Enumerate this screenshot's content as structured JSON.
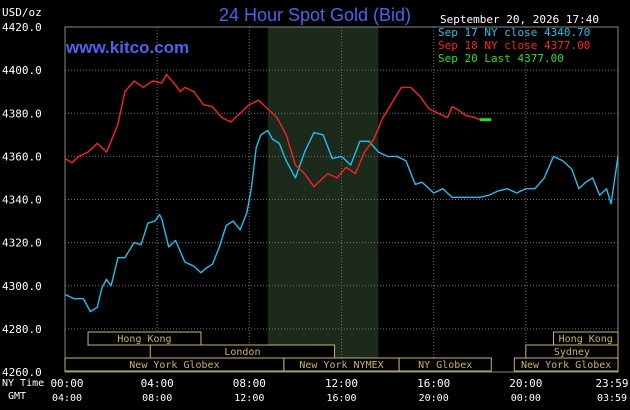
{
  "header": {
    "title": "24 Hour Spot Gold (Bid)",
    "site": "www.kitco.com",
    "unit": "USD/oz",
    "datetime": "September 20, 2026 17:40"
  },
  "legend": [
    {
      "label": "Sep 17 NY close 4340.70",
      "color": "#20c0f0"
    },
    {
      "label": "Sep 18 NY close 4377.00",
      "color": "#ff2020"
    },
    {
      "label": "Sep 20 Last 4377.00",
      "color": "#20e020"
    }
  ],
  "axis": {
    "ny_label": "NY Time",
    "gmt_label": "GMT",
    "ny_ticks": [
      "00:00",
      "04:00",
      "08:00",
      "12:00",
      "16:00",
      "20:00",
      "23:59"
    ],
    "gmt_ticks": [
      "04:00",
      "08:00",
      "12:00",
      "16:00",
      "20:00",
      "00:00",
      "03:59"
    ]
  },
  "sessions": [
    {
      "label": "Hong Kong",
      "row": 0,
      "start": 1.0,
      "end": 5.9
    },
    {
      "label": "Hong Kong",
      "row": 0,
      "start": 21.2,
      "end": 24.0
    },
    {
      "label": "London",
      "row": 1,
      "start": 3.7,
      "end": 11.7
    },
    {
      "label": "Sydney",
      "row": 1,
      "start": 20.0,
      "end": 24.0
    },
    {
      "label": "New York Globex",
      "row": 2,
      "start": 0.0,
      "end": 9.5
    },
    {
      "label": "New York NYMEX",
      "row": 2,
      "start": 9.5,
      "end": 14.5
    },
    {
      "label": "NY Globex",
      "row": 2,
      "start": 14.5,
      "end": 18.5
    },
    {
      "label": "New York Globex",
      "row": 2,
      "start": 19.5,
      "end": 24.0
    }
  ],
  "colors": {
    "background": "#000000",
    "grid": "#707070",
    "highlight": "#1c2a1c",
    "title": "#5060f0",
    "session_fill": "#000000",
    "session_border": "#c8b468"
  },
  "chart_data": {
    "type": "line",
    "title": "24 Hour Spot Gold (Bid)",
    "xlabel": "",
    "ylabel": "",
    "xlim": [
      0,
      24
    ],
    "ylim": [
      4260,
      4420
    ],
    "yticks": [
      4260,
      4280,
      4300,
      4320,
      4340,
      4360,
      4380,
      4400,
      4420
    ],
    "highlight_range": [
      8.8,
      13.6
    ],
    "series": [
      {
        "name": "Sep 17 NY close 4340.70",
        "color": "#20c0f0",
        "x": [
          0,
          0.4,
          0.8,
          1.1,
          1.4,
          1.6,
          1.8,
          2.0,
          2.3,
          2.6,
          3.0,
          3.3,
          3.6,
          3.9,
          4.1,
          4.2,
          4.5,
          4.8,
          5.2,
          5.6,
          5.9,
          6.1,
          6.4,
          6.7,
          7.0,
          7.3,
          7.6,
          7.9,
          8.1,
          8.3,
          8.5,
          8.8,
          9.0,
          9.3,
          9.6,
          10.0,
          10.4,
          10.8,
          11.2,
          11.6,
          12.0,
          12.4,
          12.8,
          13.2,
          13.6,
          14.0,
          14.4,
          14.8,
          15.2,
          15.5,
          16.0,
          16.4,
          16.8,
          17.2,
          17.6,
          18.0,
          18.4,
          18.8,
          19.2,
          19.6,
          20.0,
          20.4,
          20.8,
          21.2,
          21.6,
          22.0,
          22.3,
          22.6,
          22.9,
          23.2,
          23.5,
          23.7,
          24.0
        ],
        "y": [
          4296,
          4294,
          4294,
          4288,
          4290,
          4299,
          4303,
          4300,
          4313,
          4313,
          4320,
          4319,
          4329,
          4330,
          4333,
          4331,
          4318,
          4321,
          4311,
          4309,
          4306,
          4308,
          4310,
          4318,
          4328,
          4330,
          4326,
          4334,
          4346,
          4364,
          4370,
          4372,
          4368,
          4366,
          4358,
          4350,
          4362,
          4371,
          4370,
          4359,
          4360,
          4356,
          4367,
          4367,
          4362,
          4360,
          4360,
          4358,
          4347,
          4348,
          4343,
          4345,
          4341,
          4341,
          4341,
          4341,
          4342,
          4344,
          4345,
          4343,
          4345,
          4345,
          4350,
          4360,
          4358,
          4354,
          4345,
          4348,
          4350,
          4342,
          4345,
          4338,
          4360
        ]
      },
      {
        "name": "Sep 18 NY close 4377.00",
        "color": "#ff2020",
        "x": [
          0,
          0.3,
          0.6,
          1.0,
          1.4,
          1.8,
          2.0,
          2.3,
          2.6,
          3.0,
          3.4,
          3.8,
          4.2,
          4.4,
          4.8,
          5.0,
          5.2,
          5.6,
          6.0,
          6.4,
          6.8,
          7.2,
          7.6,
          8.0,
          8.4,
          8.8,
          9.2,
          9.6,
          10.0,
          10.4,
          10.8,
          11.0,
          11.4,
          11.8,
          12.2,
          12.6,
          13.0,
          13.4,
          13.8,
          14.2,
          14.6,
          15.0,
          15.4,
          15.8,
          16.2,
          16.6,
          16.8,
          17.0,
          17.4,
          17.8,
          18.0
        ],
        "y": [
          4359,
          4357,
          4360,
          4362,
          4366,
          4362,
          4367,
          4375,
          4390,
          4395,
          4392,
          4395,
          4394,
          4398,
          4393,
          4390,
          4392,
          4390,
          4384,
          4383,
          4378,
          4376,
          4380,
          4384,
          4386,
          4382,
          4378,
          4370,
          4356,
          4352,
          4346,
          4348,
          4352,
          4350,
          4355,
          4352,
          4362,
          4368,
          4378,
          4385,
          4392,
          4392,
          4388,
          4382,
          4380,
          4378,
          4383,
          4382,
          4379,
          4378,
          4377
        ]
      },
      {
        "name": "Sep 20 Last 4377.00",
        "color": "#20e020",
        "x": [
          18.0,
          18.5
        ],
        "y": [
          4377,
          4377
        ]
      }
    ]
  }
}
